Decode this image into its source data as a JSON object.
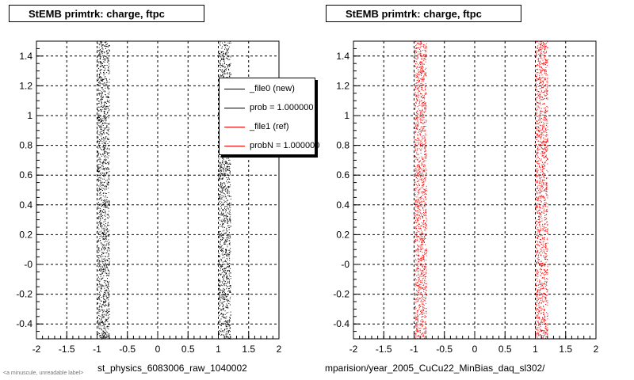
{
  "footer": "<a minuscule, unreadable label>",
  "chart_data": [
    {
      "type": "scatter",
      "title": "StEMB primtrk: charge, ftpc",
      "xlabel": "st_physics_6083006_raw_1040002",
      "ylabel": "",
      "xlim": [
        -2,
        2
      ],
      "ylim": [
        -0.5,
        1.5
      ],
      "grid": true,
      "xticks": [
        -2,
        -1.5,
        -1,
        -0.5,
        0,
        0.5,
        1,
        1.5,
        2
      ],
      "xtick_labels": [
        "-2",
        "-1.5",
        "-1",
        "-0.5",
        "0",
        "0.5",
        "1",
        "1.5",
        "2"
      ],
      "yticks": [
        -0.4,
        -0.2,
        0,
        0.2,
        0.4,
        0.6,
        0.8,
        1,
        1.2,
        1.4
      ],
      "ytick_labels": [
        "-0.4",
        "-0.2",
        "-0",
        "0.2",
        "0.4",
        "0.6",
        "0.8",
        "1",
        "1.2",
        "1.4"
      ],
      "point_color": "#000000",
      "bands": [
        {
          "x_range": [
            -1.0,
            -0.8
          ]
        },
        {
          "x_range": [
            1.0,
            1.2
          ]
        }
      ],
      "legend": {
        "placement": "top-right",
        "entries": [
          {
            "label": "_file0 (new)",
            "color": "#000000"
          },
          {
            "label": "prob = 1.000000",
            "color": "#000000"
          },
          {
            "label": "_file1 (ref)",
            "color": "#ff0000"
          },
          {
            "label": "probN = 1.000000",
            "color": "#ff0000"
          }
        ]
      }
    },
    {
      "type": "scatter",
      "title": "StEMB primtrk: charge, ftpc",
      "xlabel": "mparision/year_2005_CuCu22_MinBias_daq_sl302/",
      "ylabel": "",
      "xlim": [
        -2,
        2
      ],
      "ylim": [
        -0.5,
        1.5
      ],
      "grid": true,
      "xticks": [
        -2,
        -1.5,
        -1,
        -0.5,
        0,
        0.5,
        1,
        1.5,
        2
      ],
      "xtick_labels": [
        "-2",
        "-1.5",
        "-1",
        "-0.5",
        "0",
        "0.5",
        "1",
        "1.5",
        "2"
      ],
      "yticks": [
        -0.4,
        -0.2,
        0,
        0.2,
        0.4,
        0.6,
        0.8,
        1,
        1.2,
        1.4
      ],
      "ytick_labels": [
        "-0.4",
        "-0.2",
        "-0",
        "0.2",
        "0.4",
        "0.6",
        "0.8",
        "1",
        "1.2",
        "1.4"
      ],
      "point_color": "#ff0000",
      "bands": [
        {
          "x_range": [
            -1.0,
            -0.8
          ]
        },
        {
          "x_range": [
            1.0,
            1.2
          ]
        }
      ]
    }
  ]
}
